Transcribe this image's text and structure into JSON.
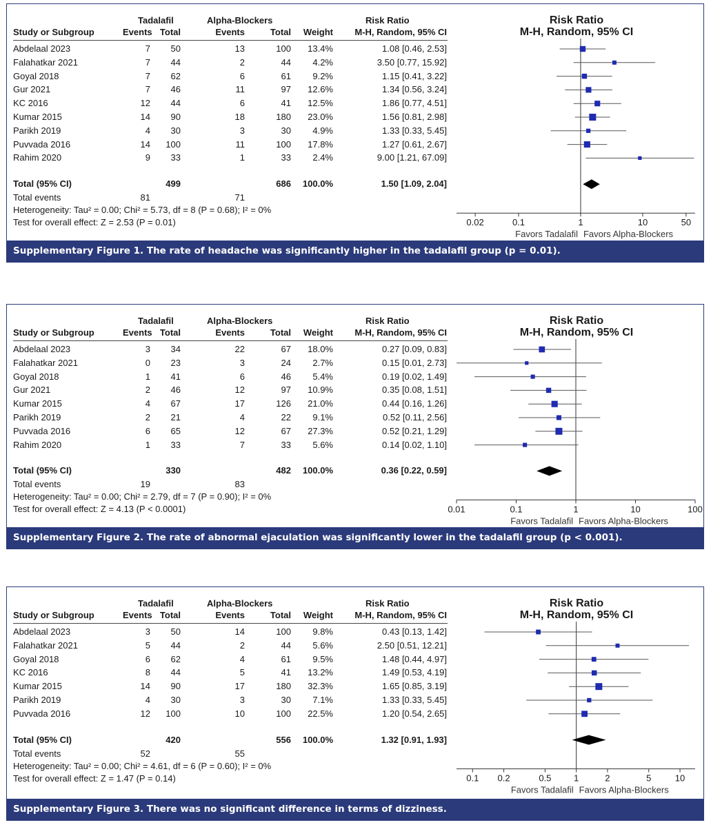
{
  "chart_data": [
    {
      "type": "forest",
      "headers": {
        "group1": "Tadalafil",
        "group2": "Alpha-Blockers",
        "study": "Study or Subgroup",
        "events": "Events",
        "total": "Total",
        "weight": "Weight",
        "rr_title": "Risk Ratio",
        "rr_method": "M-H, Random, 95% CI"
      },
      "studies": [
        {
          "name": "Abdelaal 2023",
          "e1": "7",
          "t1": "50",
          "e2": "13",
          "t2": "100",
          "weight": "13.4%",
          "rr_text": "1.08 [0.46, 2.53]",
          "rr": 1.08,
          "lo": 0.46,
          "hi": 2.53,
          "w": 13.4
        },
        {
          "name": "Falahatkar 2021",
          "e1": "7",
          "t1": "44",
          "e2": "2",
          "t2": "44",
          "weight": "4.2%",
          "rr_text": "3.50 [0.77, 15.92]",
          "rr": 3.5,
          "lo": 0.77,
          "hi": 15.92,
          "w": 4.2
        },
        {
          "name": "Goyal 2018",
          "e1": "7",
          "t1": "62",
          "e2": "6",
          "t2": "61",
          "weight": "9.2%",
          "rr_text": "1.15 [0.41, 3.22]",
          "rr": 1.15,
          "lo": 0.41,
          "hi": 3.22,
          "w": 9.2
        },
        {
          "name": "Gur 2021",
          "e1": "7",
          "t1": "46",
          "e2": "11",
          "t2": "97",
          "weight": "12.6%",
          "rr_text": "1.34 [0.56, 3.24]",
          "rr": 1.34,
          "lo": 0.56,
          "hi": 3.24,
          "w": 12.6
        },
        {
          "name": "KC 2016",
          "e1": "12",
          "t1": "44",
          "e2": "6",
          "t2": "41",
          "weight": "12.5%",
          "rr_text": "1.86 [0.77, 4.51]",
          "rr": 1.86,
          "lo": 0.77,
          "hi": 4.51,
          "w": 12.5
        },
        {
          "name": "Kumar 2015",
          "e1": "14",
          "t1": "90",
          "e2": "18",
          "t2": "180",
          "weight": "23.0%",
          "rr_text": "1.56 [0.81, 2.98]",
          "rr": 1.56,
          "lo": 0.81,
          "hi": 2.98,
          "w": 23.0
        },
        {
          "name": "Parikh 2019",
          "e1": "4",
          "t1": "30",
          "e2": "3",
          "t2": "30",
          "weight": "4.9%",
          "rr_text": "1.33 [0.33, 5.45]",
          "rr": 1.33,
          "lo": 0.33,
          "hi": 5.45,
          "w": 4.9
        },
        {
          "name": "Puvvada 2016",
          "e1": "14",
          "t1": "100",
          "e2": "11",
          "t2": "100",
          "weight": "17.8%",
          "rr_text": "1.27 [0.61, 2.67]",
          "rr": 1.27,
          "lo": 0.61,
          "hi": 2.67,
          "w": 17.8
        },
        {
          "name": "Rahim 2020",
          "e1": "9",
          "t1": "33",
          "e2": "1",
          "t2": "33",
          "weight": "2.4%",
          "rr_text": "9.00 [1.21, 67.09]",
          "rr": 9.0,
          "lo": 1.21,
          "hi": 67.09,
          "w": 2.4
        }
      ],
      "total": {
        "label": "Total (95% CI)",
        "t1": "499",
        "t2": "686",
        "weight": "100.0%",
        "rr_text": "1.50 [1.09, 2.04]",
        "rr": 1.5,
        "lo": 1.09,
        "hi": 2.04
      },
      "total_events": {
        "label": "Total events",
        "e1": "81",
        "e2": "71"
      },
      "heterogeneity": "Heterogeneity: Tau² = 0.00; Chi² = 5.73, df = 8 (P = 0.68); I² = 0%",
      "overall": "Test for overall effect: Z = 2.53 (P = 0.01)",
      "axis": {
        "scale": "log",
        "xlim": [
          0.01,
          70
        ],
        "ticks": [
          0.02,
          0.1,
          1,
          10,
          50
        ],
        "tick_labels": [
          "0.02",
          "0.1",
          "1",
          "10",
          "50"
        ]
      },
      "favors_left": "Favors Tadalafil",
      "favors_right": "Favors Alpha-Blockers",
      "caption": "Supplementary Figure 1.  The rate of headache was significantly higher in the tadalafil group (p = 0.01)."
    },
    {
      "type": "forest",
      "headers": {
        "group1": "Tadalafil",
        "group2": "Alpha-Blockers",
        "study": "Study or Subgroup",
        "events": "Events",
        "total": "Total",
        "weight": "Weight",
        "rr_title": "Risk Ratio",
        "rr_method": "M-H, Random, 95% CI"
      },
      "studies": [
        {
          "name": "Abdelaal 2023",
          "e1": "3",
          "t1": "34",
          "e2": "22",
          "t2": "67",
          "weight": "18.0%",
          "rr_text": "0.27 [0.09, 0.83]",
          "rr": 0.27,
          "lo": 0.09,
          "hi": 0.83,
          "w": 18.0
        },
        {
          "name": "Falahatkar 2021",
          "e1": "0",
          "t1": "23",
          "e2": "3",
          "t2": "24",
          "weight": "2.7%",
          "rr_text": "0.15 [0.01, 2.73]",
          "rr": 0.15,
          "lo": 0.01,
          "hi": 2.73,
          "w": 2.7
        },
        {
          "name": "Goyal 2018",
          "e1": "1",
          "t1": "41",
          "e2": "6",
          "t2": "46",
          "weight": "5.4%",
          "rr_text": "0.19 [0.02, 1.49]",
          "rr": 0.19,
          "lo": 0.02,
          "hi": 1.49,
          "w": 5.4
        },
        {
          "name": "Gur 2021",
          "e1": "2",
          "t1": "46",
          "e2": "12",
          "t2": "97",
          "weight": "10.9%",
          "rr_text": "0.35 [0.08, 1.51]",
          "rr": 0.35,
          "lo": 0.08,
          "hi": 1.51,
          "w": 10.9
        },
        {
          "name": "Kumar 2015",
          "e1": "4",
          "t1": "67",
          "e2": "17",
          "t2": "126",
          "weight": "21.0%",
          "rr_text": "0.44 [0.16, 1.26]",
          "rr": 0.44,
          "lo": 0.16,
          "hi": 1.26,
          "w": 21.0
        },
        {
          "name": "Parikh 2019",
          "e1": "2",
          "t1": "21",
          "e2": "4",
          "t2": "22",
          "weight": "9.1%",
          "rr_text": "0.52 [0.11, 2.56]",
          "rr": 0.52,
          "lo": 0.11,
          "hi": 2.56,
          "w": 9.1
        },
        {
          "name": "Puvvada 2016",
          "e1": "6",
          "t1": "65",
          "e2": "12",
          "t2": "67",
          "weight": "27.3%",
          "rr_text": "0.52 [0.21, 1.29]",
          "rr": 0.52,
          "lo": 0.21,
          "hi": 1.29,
          "w": 27.3
        },
        {
          "name": "Rahim 2020",
          "e1": "1",
          "t1": "33",
          "e2": "7",
          "t2": "33",
          "weight": "5.6%",
          "rr_text": "0.14 [0.02, 1.10]",
          "rr": 0.14,
          "lo": 0.02,
          "hi": 1.1,
          "w": 5.6
        }
      ],
      "total": {
        "label": "Total (95% CI)",
        "t1": "330",
        "t2": "482",
        "weight": "100.0%",
        "rr_text": "0.36 [0.22, 0.59]",
        "rr": 0.36,
        "lo": 0.22,
        "hi": 0.59
      },
      "total_events": {
        "label": "Total events",
        "e1": "19",
        "e2": "83"
      },
      "heterogeneity": "Heterogeneity: Tau² = 0.00; Chi² = 2.79, df = 7 (P = 0.90); I² = 0%",
      "overall": "Test for overall effect: Z = 4.13 (P < 0.0001)",
      "axis": {
        "scale": "log",
        "xlim": [
          0.01,
          100
        ],
        "ticks": [
          0.01,
          0.1,
          1,
          10,
          100
        ],
        "tick_labels": [
          "0.01",
          "0.1",
          "1",
          "10",
          "100"
        ]
      },
      "favors_left": "Favors Tadalafil",
      "favors_right": "Favors Alpha-Blockers",
      "caption": "Supplementary Figure 2.  The rate of abnormal ejaculation was significantly lower in the tadalafil group (p < 0.001)."
    },
    {
      "type": "forest",
      "headers": {
        "group1": "Tadalafil",
        "group2": "Alpha-Blockers",
        "study": "Study or Subgroup",
        "events": "Events",
        "total": "Total",
        "weight": "Weight",
        "rr_title": "Risk Ratio",
        "rr_method": "M-H, Random, 95% CI"
      },
      "studies": [
        {
          "name": "Abdelaal 2023",
          "e1": "3",
          "t1": "50",
          "e2": "14",
          "t2": "100",
          "weight": "9.8%",
          "rr_text": "0.43 [0.13, 1.42]",
          "rr": 0.43,
          "lo": 0.13,
          "hi": 1.42,
          "w": 9.8
        },
        {
          "name": "Falahatkar 2021",
          "e1": "5",
          "t1": "44",
          "e2": "2",
          "t2": "44",
          "weight": "5.6%",
          "rr_text": "2.50 [0.51, 12.21]",
          "rr": 2.5,
          "lo": 0.51,
          "hi": 12.21,
          "w": 5.6
        },
        {
          "name": "Goyal 2018",
          "e1": "6",
          "t1": "62",
          "e2": "4",
          "t2": "61",
          "weight": "9.5%",
          "rr_text": "1.48 [0.44, 4.97]",
          "rr": 1.48,
          "lo": 0.44,
          "hi": 4.97,
          "w": 9.5
        },
        {
          "name": "KC 2016",
          "e1": "8",
          "t1": "44",
          "e2": "5",
          "t2": "41",
          "weight": "13.2%",
          "rr_text": "1.49 [0.53, 4.19]",
          "rr": 1.49,
          "lo": 0.53,
          "hi": 4.19,
          "w": 13.2
        },
        {
          "name": "Kumar 2015",
          "e1": "14",
          "t1": "90",
          "e2": "17",
          "t2": "180",
          "weight": "32.3%",
          "rr_text": "1.65 [0.85, 3.19]",
          "rr": 1.65,
          "lo": 0.85,
          "hi": 3.19,
          "w": 32.3
        },
        {
          "name": "Parikh 2019",
          "e1": "4",
          "t1": "30",
          "e2": "3",
          "t2": "30",
          "weight": "7.1%",
          "rr_text": "1.33 [0.33, 5.45]",
          "rr": 1.33,
          "lo": 0.33,
          "hi": 5.45,
          "w": 7.1
        },
        {
          "name": "Puvvada 2016",
          "e1": "12",
          "t1": "100",
          "e2": "10",
          "t2": "100",
          "weight": "22.5%",
          "rr_text": "1.20 [0.54, 2.65]",
          "rr": 1.2,
          "lo": 0.54,
          "hi": 2.65,
          "w": 22.5
        }
      ],
      "total": {
        "label": "Total (95% CI)",
        "t1": "420",
        "t2": "556",
        "weight": "100.0%",
        "rr_text": "1.32 [0.91, 1.93]",
        "rr": 1.32,
        "lo": 0.91,
        "hi": 1.93
      },
      "total_events": {
        "label": "Total events",
        "e1": "52",
        "e2": "55"
      },
      "heterogeneity": "Heterogeneity: Tau² = 0.00; Chi² = 4.61, df = 6 (P = 0.60); I² = 0%",
      "overall": "Test for overall effect: Z = 1.47 (P = 0.14)",
      "axis": {
        "scale": "log",
        "xlim": [
          0.07,
          14
        ],
        "ticks": [
          0.1,
          0.2,
          0.5,
          1,
          2,
          5,
          10
        ],
        "tick_labels": [
          "0.1",
          "0.2",
          "0.5",
          "1",
          "2",
          "5",
          "10"
        ]
      },
      "favors_left": "Favors Tadalafil",
      "favors_right": "Favors Alpha-Blockers",
      "caption": "Supplementary Figure 3.  There was no significant difference in terms of dizziness."
    }
  ],
  "colors": {
    "caption_bg": "#2b3a7a",
    "caption_text": "#ffffff",
    "marker": "#1f2bb0",
    "line": "#555555",
    "diamond": "#000000",
    "border": "#2b3a7a"
  }
}
